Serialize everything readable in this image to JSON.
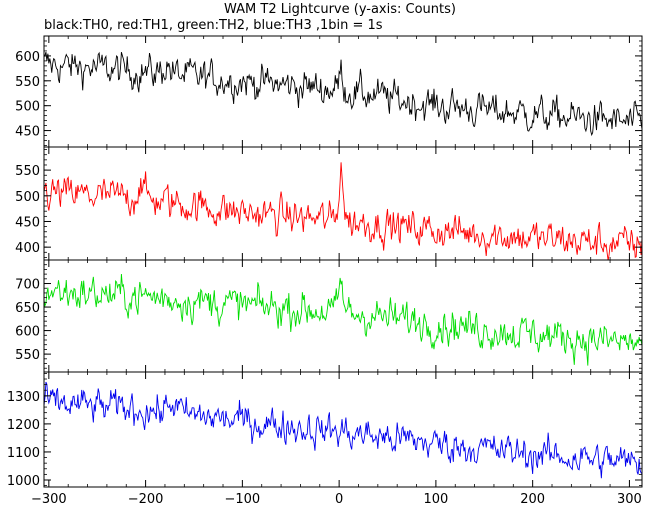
{
  "title": "WAM T2 Lightcurve (y-axis: Counts)",
  "subtitle": "black:TH0, red:TH1, green:TH2, blue:TH3 ,1bin = 1s",
  "chart_data": {
    "type": "line",
    "x_axis": {
      "range": [
        -305,
        313
      ],
      "ticks": [
        -300,
        -200,
        -100,
        0,
        100,
        200,
        300
      ]
    },
    "panels": [
      {
        "series": "TH0",
        "color": "#000000",
        "y_range": [
          417,
          640
        ],
        "y_ticks": [
          450,
          500,
          550,
          600
        ],
        "trend": [
          [
            -305,
            583
          ],
          [
            -200,
            568
          ],
          [
            -100,
            549
          ],
          [
            0,
            532
          ],
          [
            100,
            500
          ],
          [
            200,
            483
          ],
          [
            313,
            463
          ]
        ],
        "features": [
          {
            "x": -178,
            "delta": 18,
            "width": 5
          },
          {
            "x": 2,
            "delta": 38,
            "width": 3
          }
        ],
        "noise": 24
      },
      {
        "series": "TH1",
        "color": "#ff0000",
        "y_range": [
          375,
          595
        ],
        "y_ticks": [
          400,
          450,
          500,
          550
        ],
        "trend": [
          [
            -305,
            505
          ],
          [
            -200,
            495
          ],
          [
            -100,
            467
          ],
          [
            0,
            452
          ],
          [
            100,
            433
          ],
          [
            200,
            418
          ],
          [
            313,
            403
          ]
        ],
        "features": [
          {
            "x": 2,
            "delta": 110,
            "width": 3
          },
          {
            "x": -205,
            "delta": 32,
            "width": 4
          }
        ],
        "noise": 24
      },
      {
        "series": "TH2",
        "color": "#00dd00",
        "y_range": [
          512,
          750
        ],
        "y_ticks": [
          550,
          600,
          650,
          700
        ],
        "trend": [
          [
            -305,
            684
          ],
          [
            -200,
            672
          ],
          [
            -100,
            654
          ],
          [
            0,
            640
          ],
          [
            100,
            615
          ],
          [
            200,
            592
          ],
          [
            313,
            572
          ]
        ],
        "features": [
          {
            "x": 2,
            "delta": 60,
            "width": 3
          }
        ],
        "noise": 27
      },
      {
        "series": "TH3",
        "color": "#0000ee",
        "y_range": [
          975,
          1385
        ],
        "y_ticks": [
          1000,
          1100,
          1200,
          1300
        ],
        "trend": [
          [
            -305,
            1275
          ],
          [
            -200,
            1250
          ],
          [
            -100,
            1210
          ],
          [
            0,
            1172
          ],
          [
            100,
            1130
          ],
          [
            200,
            1092
          ],
          [
            313,
            1060
          ]
        ],
        "features": [
          {
            "x": -172,
            "delta": 40,
            "width": 6
          }
        ],
        "noise": 42
      }
    ]
  }
}
